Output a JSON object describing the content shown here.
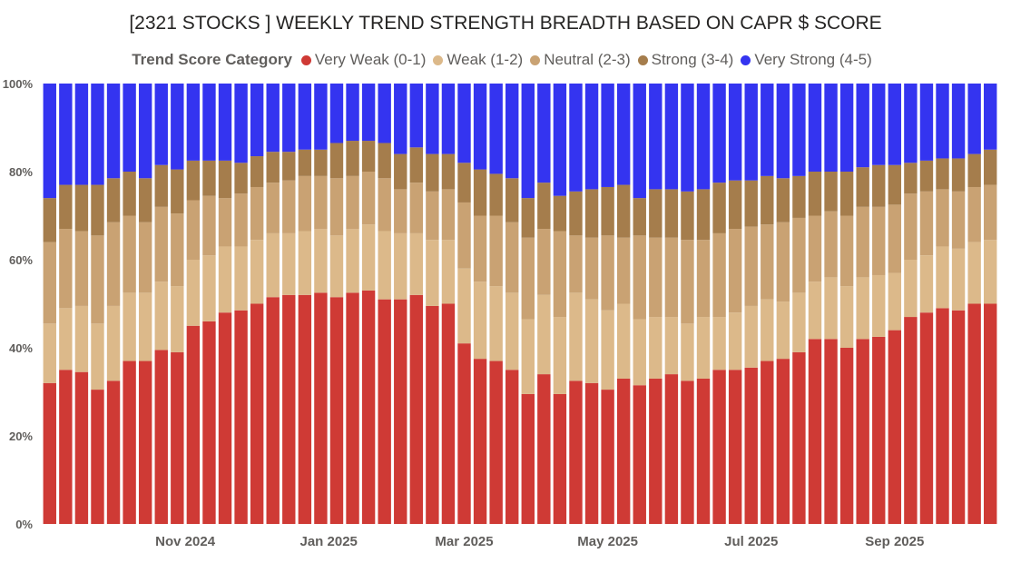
{
  "chart_data": {
    "type": "bar",
    "stacked": true,
    "percent": true,
    "title": "[2321 STOCKS ] WEEKLY TREND STRENGTH BREADTH BASED ON CAPR $ SCORE",
    "legend_title": "Trend Score Category",
    "y_ticks": [
      "0%",
      "20%",
      "40%",
      "60%",
      "80%",
      "100%"
    ],
    "ylim": [
      0,
      100
    ],
    "x_tick_labels": [
      {
        "label": "Nov 2024",
        "week_index": 8.5
      },
      {
        "label": "Jan 2025",
        "week_index": 17.5
      },
      {
        "label": "Mar 2025",
        "week_index": 26
      },
      {
        "label": "May 2025",
        "week_index": 35
      },
      {
        "label": "Jul 2025",
        "week_index": 44
      },
      {
        "label": "Sep 2025",
        "week_index": 53
      }
    ],
    "colors": {
      "Very Weak (0-1)": "#cf3a35",
      "Weak (1-2)": "#dcb98a",
      "Neutral (2-3)": "#c9a273",
      "Strong (3-4)": "#a57d4c",
      "Very Strong (4-5)": "#3434f0"
    },
    "series": [
      {
        "name": "Very Weak (0-1)",
        "values": [
          32,
          35,
          34.5,
          30.5,
          32.5,
          37,
          37,
          39.5,
          39,
          45,
          46,
          48,
          48.5,
          50,
          51.5,
          52,
          52,
          52.5,
          51.5,
          52.5,
          53,
          51,
          51,
          52,
          49.5,
          50,
          41,
          37.5,
          37,
          35,
          29.5,
          34,
          29.5,
          32.5,
          32,
          30.5,
          33,
          31.5,
          33,
          34,
          32.5,
          33,
          35,
          35,
          35.5,
          37,
          37.5,
          39,
          42,
          42,
          40,
          42,
          42.5,
          44,
          47,
          48,
          49,
          48.5,
          50,
          50
        ]
      },
      {
        "name": "Weak (1-2)",
        "values": [
          13.5,
          14,
          15,
          15,
          17,
          15.5,
          15.5,
          15.5,
          15,
          15,
          15,
          15,
          14.5,
          14.5,
          14.5,
          14,
          14.5,
          14.5,
          14,
          14.5,
          15,
          15.5,
          15,
          14,
          15,
          14.5,
          17,
          17.5,
          17,
          17.5,
          17,
          18,
          17.5,
          20,
          19,
          18,
          17,
          15,
          14,
          13,
          13,
          14,
          12,
          13,
          14,
          14,
          13,
          13.5,
          13,
          14,
          14,
          14,
          14,
          13,
          13,
          13,
          14,
          14,
          14,
          14.5
        ]
      },
      {
        "name": "Neutral (2-3)",
        "values": [
          18.5,
          18,
          17,
          20,
          19,
          17.5,
          16,
          17,
          16.5,
          13.5,
          13.5,
          11,
          12,
          12,
          11.5,
          12,
          12.5,
          12,
          13,
          12,
          12,
          12,
          10,
          11.5,
          11,
          11.5,
          15,
          15,
          16,
          16,
          18.5,
          15,
          19.5,
          13,
          14,
          17,
          15,
          19,
          18,
          18,
          19,
          17.5,
          19,
          19,
          18,
          17,
          18,
          17,
          15,
          15,
          16,
          16,
          15.5,
          15.5,
          15,
          14.5,
          13,
          13,
          12.5,
          12.5
        ]
      },
      {
        "name": "Strong (3-4)",
        "values": [
          10,
          10,
          10.5,
          11.5,
          10,
          10,
          10,
          9.5,
          10,
          9,
          8,
          8.5,
          7,
          7,
          7,
          6.5,
          6,
          6,
          8,
          8,
          7,
          8,
          8,
          8,
          8.5,
          8,
          9,
          10.5,
          9.5,
          10,
          9,
          10.5,
          8,
          10,
          11,
          11,
          12,
          8.5,
          11,
          11,
          11,
          11.5,
          11.5,
          11,
          10.5,
          11,
          10,
          9.5,
          10,
          9,
          10,
          9,
          9.5,
          9,
          7,
          7,
          7,
          7.5,
          7.5,
          8
        ]
      },
      {
        "name": "Very Strong (4-5)",
        "values": [
          26,
          23,
          23,
          23,
          21.5,
          20,
          21.5,
          18.5,
          19.5,
          17.5,
          17.5,
          17.5,
          18,
          16.5,
          15.5,
          15.5,
          15,
          15,
          13.5,
          13,
          13,
          13.5,
          16,
          14.5,
          16,
          16,
          18,
          19.5,
          20.5,
          21.5,
          26,
          22.5,
          25.5,
          24.5,
          24,
          23.5,
          23,
          26,
          24,
          24,
          24.5,
          24,
          22.5,
          22,
          22,
          21,
          21.5,
          21,
          20,
          20,
          20,
          19,
          18.5,
          18.5,
          18,
          17.5,
          17,
          17,
          16,
          15
        ]
      }
    ]
  }
}
